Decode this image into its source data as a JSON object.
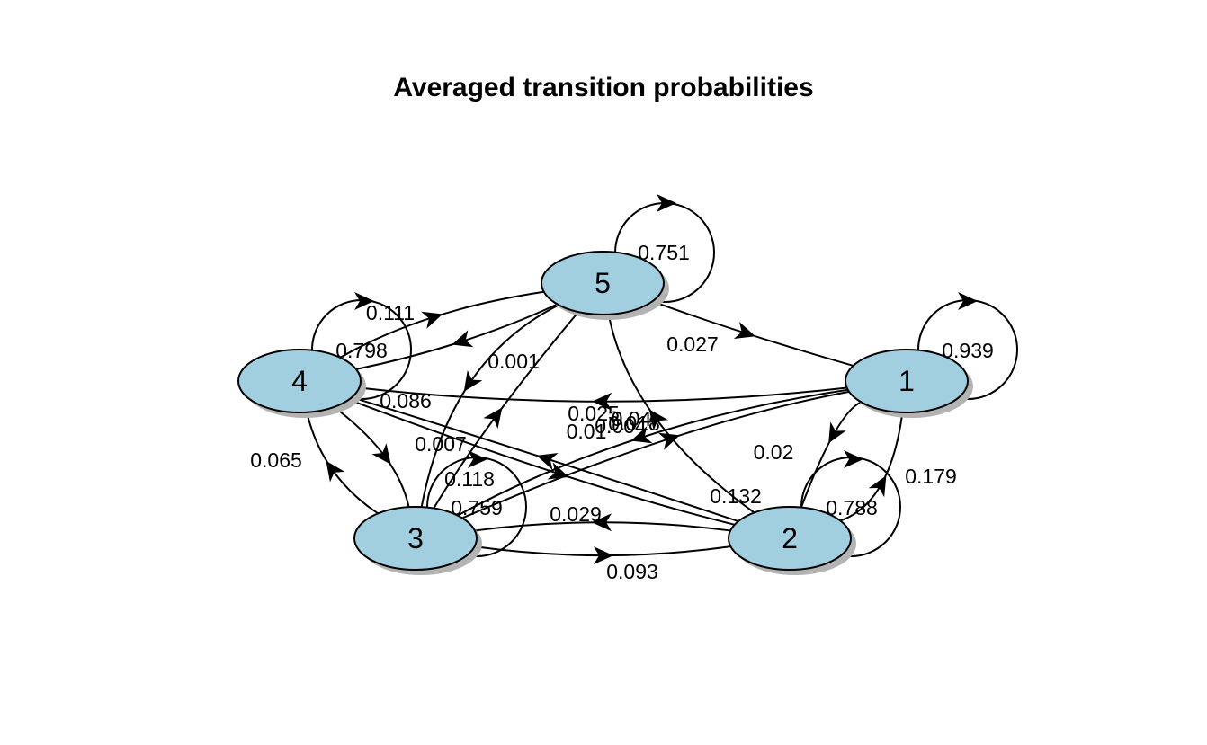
{
  "title": "Averaged transition probabilities",
  "colors": {
    "node_fill": "#a2cfe0",
    "node_shadow": "#b3b3b3",
    "edge": "#000000"
  },
  "nodes": [
    {
      "id": "1",
      "label": "1"
    },
    {
      "id": "2",
      "label": "2"
    },
    {
      "id": "3",
      "label": "3"
    },
    {
      "id": "4",
      "label": "4"
    },
    {
      "id": "5",
      "label": "5"
    }
  ],
  "edges": [
    {
      "from": "1",
      "to": "1",
      "label": "0.939"
    },
    {
      "from": "2",
      "to": "2",
      "label": "0.788"
    },
    {
      "from": "3",
      "to": "3",
      "label": "0.759"
    },
    {
      "from": "4",
      "to": "4",
      "label": "0.798"
    },
    {
      "from": "5",
      "to": "5",
      "label": "0.751"
    },
    {
      "from": "1",
      "to": "2",
      "label": "0.02"
    },
    {
      "from": "2",
      "to": "1",
      "label": "0.179"
    },
    {
      "from": "2",
      "to": "3",
      "label": "0.029"
    },
    {
      "from": "3",
      "to": "2",
      "label": "0.093"
    },
    {
      "from": "3",
      "to": "4",
      "label": "0.065"
    },
    {
      "from": "4",
      "to": "3",
      "label": "0.007"
    },
    {
      "from": "3",
      "to": "5",
      "label": "0.118"
    },
    {
      "from": "5",
      "to": "3",
      "label": "0.001"
    },
    {
      "from": "4",
      "to": "5",
      "label": "0.111"
    },
    {
      "from": "5",
      "to": "4",
      "label": "0.086"
    },
    {
      "from": "5",
      "to": "1",
      "label": "0.027"
    },
    {
      "from": "2",
      "to": "5",
      "label": "0.132"
    },
    {
      "from": "1",
      "to": "3",
      "label": "0.01"
    },
    {
      "from": "1",
      "to": "4",
      "label": "0.025"
    },
    {
      "from": "2",
      "to": "4",
      "label": "0.004"
    },
    {
      "from": "4",
      "to": "2",
      "label": "0.018"
    },
    {
      "from": "3",
      "to": "1",
      "label": "0.04"
    }
  ]
}
